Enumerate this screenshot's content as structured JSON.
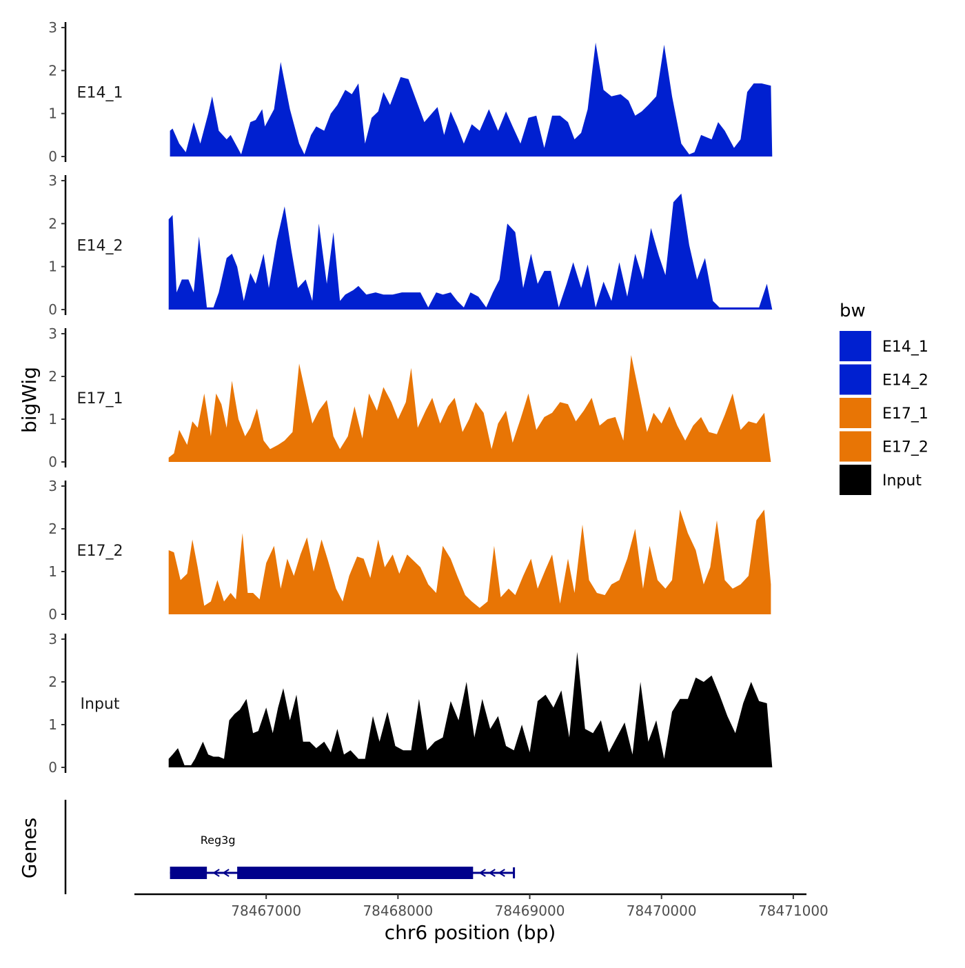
{
  "chart_data": {
    "type": "area",
    "ylabel": "bigWig",
    "xlabel": "chr6 position (bp)",
    "genes_label": "Genes",
    "ylim": [
      0,
      3
    ],
    "y_ticks": [
      "0",
      "1",
      "2",
      "3"
    ],
    "x_ticks": [
      {
        "value": 78467000,
        "label": "78467000"
      },
      {
        "value": 78468000,
        "label": "78468000"
      },
      {
        "value": 78469000,
        "label": "78469000"
      },
      {
        "value": 78470000,
        "label": "78470000"
      },
      {
        "value": 78471000,
        "label": "78471000"
      }
    ],
    "xlim": [
      78466000,
      78471100
    ],
    "legend": {
      "title": "bw",
      "entries": [
        {
          "name": "E14_1",
          "color": "#0020D0"
        },
        {
          "name": "E14_2",
          "color": "#0020D0"
        },
        {
          "name": "E17_1",
          "color": "#E87505"
        },
        {
          "name": "E17_2",
          "color": "#E87505"
        },
        {
          "name": "Input",
          "color": "#000000"
        }
      ]
    },
    "series": [
      {
        "name": "E14_1",
        "color": "#0020D0",
        "x": [
          78466270,
          78466290,
          78466340,
          78466390,
          78466450,
          78466500,
          78466560,
          78466590,
          78466640,
          78466700,
          78466730,
          78466810,
          78466880,
          78466920,
          78466970,
          78466990,
          78467060,
          78467110,
          78467180,
          78467250,
          78467290,
          78467340,
          78467380,
          78467440,
          78467490,
          78467540,
          78467600,
          78467650,
          78467700,
          78467750,
          78467800,
          78467850,
          78467890,
          78467940,
          78468020,
          78468080,
          78468140,
          78468200,
          78468270,
          78468300,
          78468350,
          78468400,
          78468450,
          78468500,
          78468560,
          78468620,
          78468690,
          78468760,
          78468820,
          78468870,
          78468930,
          78468990,
          78469050,
          78469110,
          78469170,
          78469230,
          78469290,
          78469340,
          78469390,
          78469440,
          78469500,
          78469560,
          78469620,
          78469690,
          78469750,
          78469800,
          78469850,
          78469900,
          78469960,
          78470020,
          78470080,
          78470150,
          78470210,
          78470250,
          78470300,
          78470380,
          78470430,
          78470480,
          78470550,
          78470600,
          78470650,
          78470700,
          78470760,
          78470830,
          78470840
        ],
        "values": [
          0.6,
          0.65,
          0.3,
          0.1,
          0.8,
          0.3,
          1.0,
          1.4,
          0.6,
          0.4,
          0.5,
          0.05,
          0.8,
          0.85,
          1.1,
          0.7,
          1.1,
          2.2,
          1.1,
          0.3,
          0.05,
          0.5,
          0.7,
          0.6,
          1.0,
          1.2,
          1.55,
          1.45,
          1.7,
          0.3,
          0.9,
          1.05,
          1.5,
          1.2,
          1.85,
          1.8,
          1.3,
          0.8,
          1.05,
          1.15,
          0.5,
          1.05,
          0.7,
          0.3,
          0.75,
          0.6,
          1.1,
          0.6,
          1.05,
          0.7,
          0.3,
          0.9,
          0.95,
          0.2,
          0.95,
          0.95,
          0.8,
          0.4,
          0.55,
          1.1,
          2.65,
          1.55,
          1.4,
          1.45,
          1.3,
          0.95,
          1.05,
          1.2,
          1.4,
          2.6,
          1.4,
          0.3,
          0.05,
          0.1,
          0.5,
          0.4,
          0.8,
          0.6,
          0.2,
          0.4,
          1.5,
          1.7,
          1.7,
          1.65,
          0.0
        ]
      },
      {
        "name": "E14_2",
        "color": "#0020D0",
        "x": [
          78466260,
          78466290,
          78466320,
          78466360,
          78466410,
          78466450,
          78466490,
          78466550,
          78466600,
          78466640,
          78466700,
          78466740,
          78466780,
          78466830,
          78466880,
          78466920,
          78466980,
          78467020,
          78467080,
          78467140,
          78467190,
          78467240,
          78467300,
          78467350,
          78467400,
          78467460,
          78467510,
          78467560,
          78467600,
          78467660,
          78467700,
          78467760,
          78467830,
          78467890,
          78467960,
          78468030,
          78468100,
          78468170,
          78468230,
          78468290,
          78468340,
          78468400,
          78468450,
          78468500,
          78468550,
          78468610,
          78468670,
          78468720,
          78468770,
          78468830,
          78468890,
          78468950,
          78469010,
          78469060,
          78469110,
          78469160,
          78469220,
          78469280,
          78469330,
          78469390,
          78469440,
          78469500,
          78469560,
          78469620,
          78469680,
          78469740,
          78469800,
          78469860,
          78469920,
          78469980,
          78470030,
          78470090,
          78470150,
          78470210,
          78470270,
          78470330,
          78470390,
          78470440,
          78470500,
          78470560,
          78470620,
          78470680,
          78470740,
          78470800,
          78470840
        ],
        "values": [
          2.1,
          2.2,
          0.4,
          0.7,
          0.7,
          0.4,
          1.7,
          0.05,
          0.05,
          0.4,
          1.2,
          1.3,
          1.0,
          0.2,
          0.85,
          0.6,
          1.3,
          0.5,
          1.6,
          2.4,
          1.4,
          0.5,
          0.7,
          0.2,
          2.0,
          0.6,
          1.8,
          0.2,
          0.35,
          0.45,
          0.55,
          0.35,
          0.4,
          0.35,
          0.35,
          0.4,
          0.4,
          0.4,
          0.05,
          0.4,
          0.35,
          0.4,
          0.2,
          0.05,
          0.4,
          0.3,
          0.05,
          0.4,
          0.7,
          2.0,
          1.8,
          0.5,
          1.3,
          0.6,
          0.9,
          0.9,
          0.05,
          0.6,
          1.1,
          0.5,
          1.05,
          0.05,
          0.65,
          0.2,
          1.1,
          0.3,
          1.3,
          0.7,
          1.9,
          1.25,
          0.8,
          2.5,
          2.7,
          1.5,
          0.7,
          1.2,
          0.2,
          0.05,
          0.05,
          0.05,
          0.05,
          0.05,
          0.05,
          0.6,
          0.0
        ]
      },
      {
        "name": "E17_1",
        "color": "#E87505",
        "x": [
          78466260,
          78466300,
          78466340,
          78466400,
          78466440,
          78466480,
          78466530,
          78466580,
          78466620,
          78466660,
          78466700,
          78466740,
          78466790,
          78466840,
          78466880,
          78466930,
          78466980,
          78467030,
          78467090,
          78467140,
          78467200,
          78467250,
          78467300,
          78467350,
          78467400,
          78467460,
          78467510,
          78467560,
          78467620,
          78467670,
          78467730,
          78467780,
          78467840,
          78467890,
          78467950,
          78468000,
          78468060,
          78468100,
          78468150,
          78468210,
          78468260,
          78468320,
          78468380,
          78468430,
          78468490,
          78468540,
          78468590,
          78468650,
          78468710,
          78468760,
          78468820,
          78468870,
          78468930,
          78468990,
          78469050,
          78469110,
          78469170,
          78469230,
          78469290,
          78469350,
          78469410,
          78469470,
          78469530,
          78469590,
          78469650,
          78469710,
          78469770,
          78469830,
          78469890,
          78469940,
          78470000,
          78470060,
          78470120,
          78470180,
          78470240,
          78470300,
          78470360,
          78470420,
          78470480,
          78470540,
          78470600,
          78470660,
          78470720,
          78470780,
          78470830
        ],
        "values": [
          0.1,
          0.2,
          0.75,
          0.4,
          0.95,
          0.8,
          1.6,
          0.6,
          1.6,
          1.35,
          0.8,
          1.9,
          1.0,
          0.6,
          0.8,
          1.25,
          0.5,
          0.3,
          0.4,
          0.5,
          0.7,
          2.3,
          1.6,
          0.9,
          1.2,
          1.45,
          0.6,
          0.3,
          0.6,
          1.3,
          0.55,
          1.6,
          1.2,
          1.75,
          1.4,
          1.0,
          1.4,
          2.2,
          0.8,
          1.2,
          1.5,
          0.9,
          1.3,
          1.5,
          0.7,
          1.0,
          1.4,
          1.15,
          0.3,
          0.9,
          1.2,
          0.45,
          1.0,
          1.6,
          0.75,
          1.05,
          1.15,
          1.4,
          1.35,
          0.95,
          1.2,
          1.5,
          0.85,
          1.0,
          1.05,
          0.5,
          2.5,
          1.6,
          0.7,
          1.15,
          0.9,
          1.3,
          0.85,
          0.5,
          0.85,
          1.05,
          0.7,
          0.65,
          1.1,
          1.6,
          0.75,
          0.95,
          0.9,
          1.15,
          0.0
        ]
      },
      {
        "name": "E17_2",
        "color": "#E87505",
        "x": [
          78466260,
          78466300,
          78466350,
          78466400,
          78466440,
          78466480,
          78466530,
          78466580,
          78466630,
          78466680,
          78466730,
          78466770,
          78466820,
          78466860,
          78466900,
          78466950,
          78467000,
          78467060,
          78467110,
          78467160,
          78467210,
          78467260,
          78467310,
          78467360,
          78467420,
          78467470,
          78467530,
          78467580,
          78467630,
          78467690,
          78467740,
          78467790,
          78467850,
          78467900,
          78467960,
          78468010,
          78468070,
          78468120,
          78468170,
          78468230,
          78468290,
          78468340,
          78468400,
          78468450,
          78468510,
          78468560,
          78468620,
          78468680,
          78468730,
          78468780,
          78468840,
          78468890,
          78468950,
          78469010,
          78469060,
          78469120,
          78469170,
          78469230,
          78469290,
          78469340,
          78469400,
          78469450,
          78469510,
          78469570,
          78469620,
          78469680,
          78469740,
          78469800,
          78469860,
          78469910,
          78469970,
          78470030,
          78470080,
          78470140,
          78470200,
          78470260,
          78470320,
          78470370,
          78470420,
          78470480,
          78470540,
          78470600,
          78470660,
          78470720,
          78470780,
          78470830
        ],
        "values": [
          1.5,
          1.45,
          0.8,
          0.95,
          1.75,
          1.1,
          0.2,
          0.3,
          0.8,
          0.3,
          0.5,
          0.35,
          1.9,
          0.5,
          0.5,
          0.35,
          1.2,
          1.6,
          0.6,
          1.3,
          0.9,
          1.4,
          1.8,
          1.0,
          1.75,
          1.25,
          0.6,
          0.3,
          0.9,
          1.35,
          1.3,
          0.85,
          1.75,
          1.1,
          1.4,
          0.95,
          1.4,
          1.25,
          1.1,
          0.7,
          0.5,
          1.6,
          1.3,
          0.9,
          0.45,
          0.3,
          0.15,
          0.3,
          1.6,
          0.4,
          0.6,
          0.45,
          0.9,
          1.3,
          0.6,
          1.05,
          1.4,
          0.25,
          1.3,
          0.5,
          2.1,
          0.8,
          0.5,
          0.45,
          0.7,
          0.8,
          1.3,
          2.0,
          0.6,
          1.6,
          0.8,
          0.6,
          0.8,
          2.45,
          1.9,
          1.5,
          0.7,
          1.1,
          2.2,
          0.8,
          0.6,
          0.7,
          0.9,
          2.2,
          2.45,
          0.7
        ]
      },
      {
        "name": "Input",
        "color": "#000000",
        "x": [
          78466260,
          78466290,
          78466330,
          78466380,
          78466430,
          78466460,
          78466520,
          78466560,
          78466600,
          78466640,
          78466680,
          78466720,
          78466760,
          78466800,
          78466850,
          78466900,
          78466940,
          78467000,
          78467050,
          78467090,
          78467130,
          78467180,
          78467230,
          78467280,
          78467330,
          78467380,
          78467440,
          78467490,
          78467540,
          78467590,
          78467640,
          78467700,
          78467750,
          78467810,
          78467860,
          78467920,
          78467980,
          78468040,
          78468100,
          78468160,
          78468220,
          78468280,
          78468340,
          78468400,
          78468460,
          78468520,
          78468580,
          78468640,
          78468700,
          78468760,
          78468820,
          78468880,
          78468940,
          78469000,
          78469060,
          78469120,
          78469180,
          78469240,
          78469300,
          78469360,
          78469420,
          78469480,
          78469540,
          78469600,
          78469660,
          78469720,
          78469780,
          78469840,
          78469900,
          78469960,
          78470020,
          78470080,
          78470140,
          78470200,
          78470260,
          78470320,
          78470380,
          78470440,
          78470500,
          78470560,
          78470620,
          78470680,
          78470740,
          78470800,
          78470840
        ],
        "values": [
          0.2,
          0.3,
          0.45,
          0.05,
          0.05,
          0.2,
          0.6,
          0.3,
          0.25,
          0.25,
          0.2,
          1.1,
          1.25,
          1.35,
          1.6,
          0.8,
          0.85,
          1.4,
          0.8,
          1.4,
          1.85,
          1.1,
          1.7,
          0.6,
          0.6,
          0.45,
          0.6,
          0.35,
          0.9,
          0.3,
          0.4,
          0.2,
          0.2,
          1.2,
          0.6,
          1.3,
          0.5,
          0.4,
          0.4,
          1.6,
          0.4,
          0.6,
          0.7,
          1.55,
          1.1,
          2.0,
          0.7,
          1.6,
          0.9,
          1.2,
          0.5,
          0.4,
          1.0,
          0.35,
          1.55,
          1.7,
          1.4,
          1.8,
          0.7,
          2.7,
          0.9,
          0.8,
          1.1,
          0.35,
          0.7,
          1.05,
          0.3,
          2.0,
          0.6,
          1.1,
          0.2,
          1.3,
          1.6,
          1.6,
          2.1,
          2.0,
          2.15,
          1.7,
          1.2,
          0.8,
          1.5,
          2.0,
          1.55,
          1.5,
          0.0
        ]
      }
    ],
    "genes": [
      {
        "name": "Reg3g",
        "color": "#00008B",
        "start": 78466270,
        "end": 78468880,
        "strand": "-",
        "exons": [
          [
            78466270,
            78466550
          ],
          [
            78466780,
            78468570
          ]
        ]
      }
    ]
  }
}
